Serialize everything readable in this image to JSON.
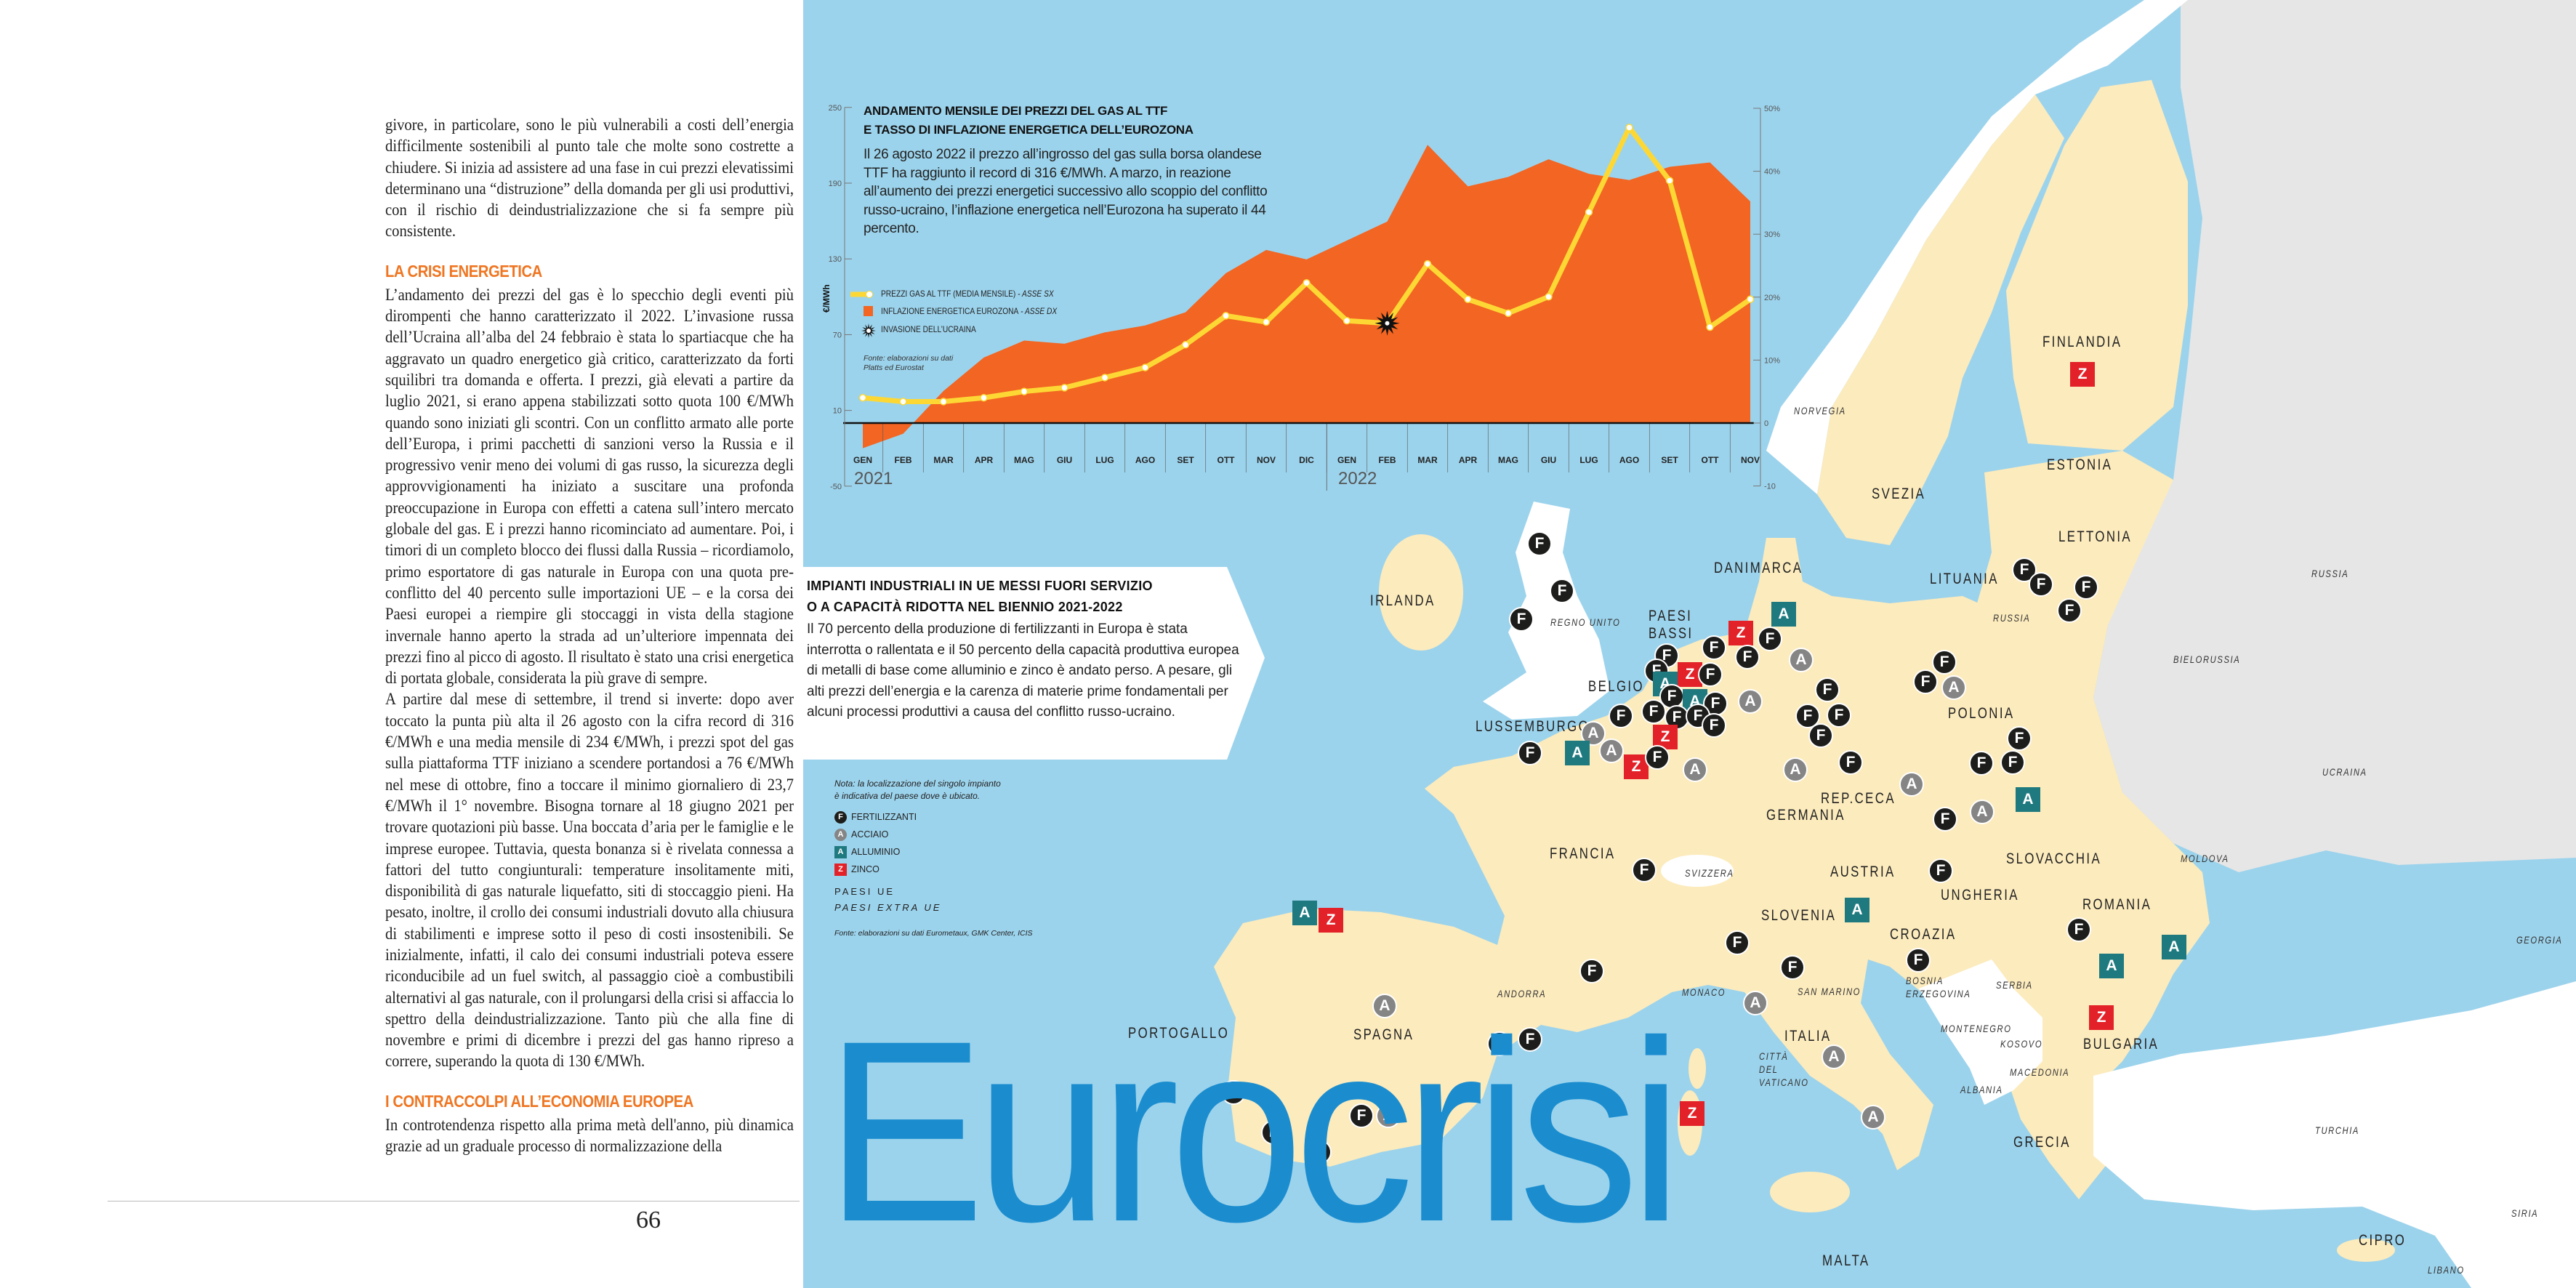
{
  "article": {
    "paragraph_1": "givore, in particolare, sono le più vulnerabili a costi dell’energia difficilmente sostenibili al punto tale che molte sono costrette a chiudere. Si inizia ad assistere ad una fase in cui prezzi elevatissimi determinano una “distruzione” della domanda per gli usi produttivi, con il rischio di deindustrializzazione che si fa sempre più consistente.",
    "heading_1": "LA CRISI ENERGETICA",
    "paragraph_2": "L’andamento dei prezzi del gas è lo specchio degli eventi più dirompenti che hanno caratterizzato il 2022. L’invasione russa dell’Ucraina all’alba del 24 febbraio è stata lo spartiacque che ha aggravato un quadro energetico già critico, caratterizzato da forti squilibri tra domanda e offerta. I prezzi, già elevati a partire da luglio 2021, si erano appena stabilizzati sotto quota 100 €/MWh quando sono iniziati gli scontri. Con un conflitto armato alle porte dell’Europa, i primi pacchetti di sanzioni verso la Russia e il progressivo venir meno dei volumi di gas russo, la sicurezza degli approvvigionamenti ha iniziato a suscitare una profonda preoccupazione in Europa con effetti a catena sull’intero mercato globale del gas. E i prezzi hanno ricominciato ad aumentare. Poi, i timori di un completo blocco dei flussi dalla Russia – ricordiamolo, primo esportatore di gas naturale in Europa con una quota pre-conflitto del 40 percento sulle importazioni UE – e la corsa dei Paesi europei a riempire gli stoccaggi in vista della stagione invernale hanno aperto la strada ad un’ulteriore impennata dei prezzi fino al picco di agosto. Il risultato è stato una crisi energetica di portata globale, considerata la più grave di sempre.",
    "paragraph_3": "A partire dal mese di settembre, il trend si inverte: dopo aver toccato la punta più alta il 26 agosto con la cifra record di 316 €/MWh e una media mensile di 234 €/MWh, i prezzi spot del gas sulla piattaforma TTF iniziano a scendere portandosi a 76 €/MWh nel mese di ottobre, fino a toccare il minimo giornaliero di 23,7 €/MWh il 1° novembre. Bisogna tornare al 18 giugno 2021 per trovare quotazioni più basse. Una boccata d’aria per le famiglie e le imprese europee. Tuttavia, questa bonanza si è rivelata connessa a fattori del tutto congiunturali: temperature insolitamente miti, disponibilità di gas naturale liquefatto, siti di stoccaggio pieni. Ha pesato, inoltre, il crollo dei consumi industriali dovuto alla chiusura di stabilimenti e imprese sotto il peso di costi insostenibili. Se inizialmente, infatti, il calo dei consumi industriali poteva essere riconducibile ad un fuel switch, al passaggio cioè a combustibili alternativi al gas naturale, con il prolungarsi della crisi si affaccia lo spettro della deindustrializzazione. Tanto più che alla fine di novembre e primi di dicembre i prezzi del gas hanno ripreso a correre, superando la quota di 130 €/MWh.",
    "heading_2": "I CONTRACCOLPI ALL’ECONOMIA EUROPEA",
    "paragraph_4": "In controtendenza rispetto alla prima metà dell'anno, più dinamica grazie ad un graduale processo di normalizzazione della",
    "page_number": "66"
  },
  "headline": "Eurocrisi",
  "chart_data": {
    "type": "line",
    "title": "ANDAMENTO MENSILE DEI PREZZI DEL GAS AL TTF E TASSO DI INFLAZIONE ENERGETICA DELL’EUROZONA",
    "title_line_1": "ANDAMENTO MENSILE DEI PREZZI DEL GAS AL TTF",
    "title_line_2": "E TASSO DI INFLAZIONE ENERGETICA DELL’EUROZONA",
    "description": "Il 26 agosto 2022 il prezzo all’ingrosso del gas sulla borsa olandese TTF ha raggiunto il record di 316 €/MWh. A marzo, in reazione all’aumento dei prezzi energetici successivo allo scoppio del conflitto russo-ucraino, l’inflazione energetica nell’Eurozona ha superato il 44 percento.",
    "ylabel": "€/MWh",
    "categories": [
      "GEN",
      "FEB",
      "MAR",
      "APR",
      "MAG",
      "GIU",
      "LUG",
      "AGO",
      "SET",
      "OTT",
      "NOV",
      "DIC",
      "GEN",
      "FEB",
      "MAR",
      "APR",
      "MAG",
      "GIU",
      "LUG",
      "AGO",
      "SET",
      "OTT",
      "NOV"
    ],
    "years": [
      "2021",
      "2022"
    ],
    "left_axis": {
      "ticks": [
        "250",
        "190",
        "130",
        "70",
        "10",
        "-50"
      ],
      "tick_values": [
        250,
        190,
        130,
        70,
        10,
        -50
      ],
      "range": [
        -50,
        250
      ]
    },
    "right_axis": {
      "ticks": [
        "50%",
        "40%",
        "30%",
        "20%",
        "10%",
        "0",
        "-10"
      ],
      "tick_values": [
        50,
        40,
        30,
        20,
        10,
        0,
        -10
      ],
      "range": [
        -10,
        50
      ]
    },
    "series": [
      {
        "name": "PREZZI GAS AL TTF (MEDIA MENSILE)",
        "axis_note": " - ASSE SX",
        "type": "line",
        "axis": "left",
        "color": "#fdd835",
        "values": [
          20,
          17,
          17,
          20,
          25,
          28,
          36,
          44,
          62,
          85,
          80,
          111,
          81,
          79,
          126,
          98,
          87,
          100,
          167,
          234,
          192,
          76,
          98
        ]
      },
      {
        "name": "INFLAZIONE ENERGETICA EUROZONA",
        "axis_note": " - ASSE DX",
        "type": "area",
        "axis": "right",
        "color": "#f26522",
        "values": [
          -4.0,
          -1.7,
          5.1,
          10.4,
          13.1,
          12.6,
          14.4,
          15.5,
          17.6,
          23.8,
          27.5,
          26.0,
          29.0,
          32.0,
          44.2,
          37.6,
          39.1,
          41.9,
          39.6,
          38.6,
          40.7,
          41.4,
          35.2
        ]
      }
    ],
    "annotation": {
      "label": "INVASIONE DELL’UCRAINA",
      "category_index": 13
    },
    "source": "Fonte: elaborazioni su dati Platts ed Eurostat"
  },
  "infobox": {
    "title_line_1": "IMPIANTI INDUSTRIALI IN UE MESSI FUORI SERVIZIO",
    "title_line_2": "O A CAPACITÀ RIDOTTA NEL BIENNIO 2021-2022",
    "body": "Il 70 percento della produzione di fertilizzanti in Europa è stata interrotta o rallentata e il 50 percento della capacità produttiva europea di metalli di base come alluminio e zinco è andato perso. A pesare, gli alti prezzi dell’energia e la carenza di materie prime fondamentali per alcuni processi produttivi a causa del conflitto russo-ucraino."
  },
  "map_legend": {
    "note": "Nota: la localizzazione del singolo impianto è indicativa del paese dove è ubicato.",
    "items": [
      {
        "letter": "F",
        "label": "FERTILIZZANTI",
        "color": "#1d1d1b"
      },
      {
        "letter": "A",
        "label": "ACCIAIO",
        "color": "#858585"
      },
      {
        "letter": "A",
        "label": "ALLUMINIO",
        "color": "#1f7a80"
      },
      {
        "letter": "Z",
        "label": "ZINCO",
        "color": "#e32128"
      }
    ],
    "eu": "PAESI UE",
    "non_eu": "PAESI EXTRA UE",
    "source": "Fonte: elaborazioni su dati Eurometaux, GMK Center, ICIS"
  },
  "map": {
    "colors": {
      "sea": "#9cd3ec",
      "eu": "#fcebbd",
      "non_eu": "#ffffff",
      "other": "#e6e6e6"
    },
    "countries": [
      "IRLANDA",
      "REGNO UNITO",
      "PAESI BASSI",
      "BELGIO",
      "LUSSEMBURGO",
      "DANIMARCA",
      "GERMANIA",
      "FRANCIA",
      "SVIZZERA",
      "REP.CECA",
      "POLONIA",
      "SLOVACCHIA",
      "AUSTRIA",
      "UNGHERIA",
      "SLOVENIA",
      "CROAZIA",
      "BOSNIA ERZEGOVINA",
      "SERBIA",
      "ROMANIA",
      "BULGARIA",
      "MONTENEGRO",
      "KOSOVO",
      "MACEDONIA",
      "ALBANIA",
      "GRECIA",
      "TURCHIA",
      "CIPRO",
      "LIBANO",
      "SIRIA",
      "GEORGIA",
      "ITALIA",
      "CITTÀ DEL VATICANO",
      "SAN MARINO",
      "MALTA",
      "SPAGNA",
      "PORTOGALLO",
      "ANDORRA",
      "MONACO",
      "SVEZIA",
      "FINLANDIA",
      "ESTONIA",
      "LETTONIA",
      "LITUANIA",
      "RUSSIA",
      "BIELORUSSIA",
      "UCRAINA",
      "MOLDOVA",
      "NORVEGIA",
      "RUSSIA"
    ],
    "markers": [
      "F",
      "F",
      "F",
      "Z",
      "F",
      "At",
      "F",
      "F",
      "Ag",
      "F",
      "F",
      "Z",
      "F",
      "At",
      "F",
      "At",
      "F",
      "Ag",
      "F",
      "F",
      "F",
      "F",
      "F",
      "Ag",
      "Ag",
      "At",
      "F",
      "Z",
      "Z",
      "F",
      "Ag",
      "Ag",
      "F",
      "F",
      "F",
      "F",
      "F",
      "F",
      "F",
      "Ag",
      "F",
      "F",
      "F",
      "Ag",
      "At",
      "Ag",
      "F",
      "F",
      "F",
      "F",
      "F",
      "Z",
      "F",
      "F",
      "F",
      "At",
      "F",
      "F",
      "Ag",
      "Ag",
      "Ag",
      "F",
      "At",
      "At",
      "Z",
      "At",
      "Z",
      "F",
      "Ag",
      "F",
      "F",
      "F",
      "F",
      "F",
      "F",
      "Ag",
      "Z"
    ]
  }
}
